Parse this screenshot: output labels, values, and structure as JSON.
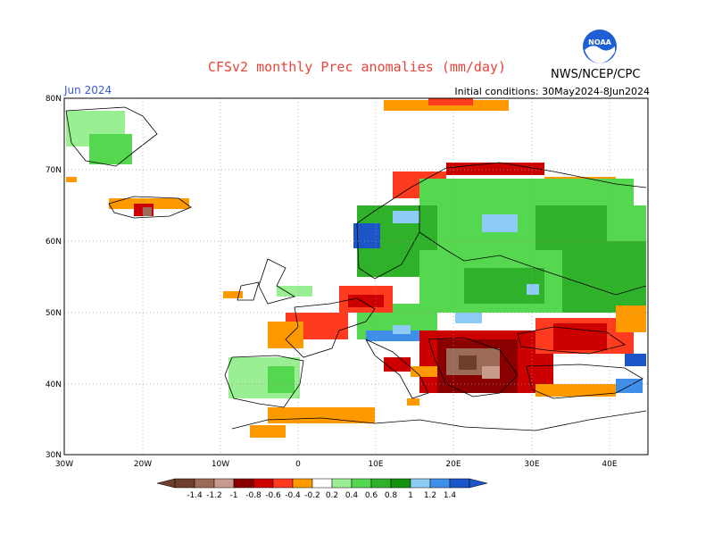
{
  "header": {
    "title": "CFSv2 monthly Prec anomalies (mm/day)",
    "month": "Jun 2024",
    "initial_conditions": "Initial conditions: 30May2024-8Jun2024",
    "agency": "NWS/NCEP/CPC",
    "logo_text": "NOAA"
  },
  "axes": {
    "lat_labels": [
      "80N",
      "70N",
      "60N",
      "50N",
      "40N",
      "30N"
    ],
    "lon_labels": [
      "30W",
      "20W",
      "10W",
      "0",
      "10E",
      "20E",
      "30E",
      "40E"
    ]
  },
  "colorbar": {
    "labels": [
      "-1.4",
      "-1.2",
      "-1",
      "-0.8",
      "-0.6",
      "-0.4",
      "-0.2",
      "0.2",
      "0.4",
      "0.6",
      "0.8",
      "1",
      "1.2",
      "1.4"
    ],
    "colors": [
      "#6e3f2b",
      "#9c6b58",
      "#c79c8c",
      "#8a0000",
      "#cc0000",
      "#ff3b1f",
      "#ff9900",
      "#ffffff",
      "#9aef92",
      "#55d84f",
      "#2fb22a",
      "#13910f",
      "#8ecbf5",
      "#3f8fe8",
      "#1b55c7"
    ]
  }
}
